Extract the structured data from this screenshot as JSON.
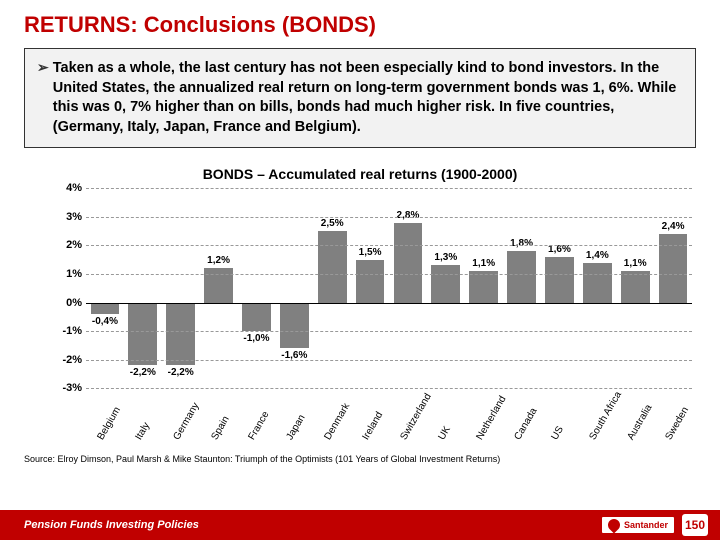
{
  "title": "RETURNS: Conclusions (BONDS)",
  "callout_bullet": "➢",
  "callout_text": "Taken as a whole, the last century has not been especially kind to bond investors. In the United States, the annualized real return on long-term government bonds was 1, 6%.  While this was 0, 7% higher than on bills, bonds had much higher risk. In five countries, (Germany, Italy, Japan, France and Belgium).",
  "chart": {
    "title": "BONDS – Accumulated real returns (1900-2000)",
    "y_min": -3,
    "y_max": 4,
    "y_ticks": [
      4,
      3,
      2,
      1,
      0,
      -1,
      -2,
      -3
    ],
    "y_tick_labels": [
      "4%",
      "3%",
      "2%",
      "1%",
      "0%",
      "-1%",
      "-2%",
      "-3%"
    ],
    "grid_color": "#999999",
    "bar_color": "#808080",
    "background_color": "#ffffff",
    "title_fontsize": 14,
    "label_fontsize": 11,
    "value_label_fontsize": 10,
    "x_label_fontsize": 10,
    "bars": [
      {
        "country": "Belgium",
        "value": -0.4,
        "label": "-0,4%"
      },
      {
        "country": "Italy",
        "value": -2.2,
        "label": "-2,2%"
      },
      {
        "country": "Germany",
        "value": -2.2,
        "label": "-2,2%"
      },
      {
        "country": "Spain",
        "value": 1.2,
        "label": "1,2%"
      },
      {
        "country": "France",
        "value": -1.0,
        "label": "-1,0%"
      },
      {
        "country": "Japan",
        "value": -1.6,
        "label": "-1,6%"
      },
      {
        "country": "Denmark",
        "value": 2.5,
        "label": "2,5%"
      },
      {
        "country": "Ireland",
        "value": 1.5,
        "label": "1,5%"
      },
      {
        "country": "Switzerland",
        "value": 2.8,
        "label": "2,8%"
      },
      {
        "country": "UK",
        "value": 1.3,
        "label": "1,3%"
      },
      {
        "country": "Netherland",
        "value": 1.1,
        "label": "1,1%"
      },
      {
        "country": "Canada",
        "value": 1.8,
        "label": "1,8%"
      },
      {
        "country": "US",
        "value": 1.6,
        "label": "1,6%"
      },
      {
        "country": "South Africa",
        "value": 1.4,
        "label": "1,4%"
      },
      {
        "country": "Australia",
        "value": 1.1,
        "label": "1,1%"
      },
      {
        "country": "Sweden",
        "value": 2.4,
        "label": "2,4%"
      }
    ]
  },
  "source": "Source: Elroy Dimson, Paul Marsh & Mike Staunton: Triumph of the Optimists (101 Years of Global Investment Returns)",
  "footer": "Pension Funds Investing Policies",
  "brand": "Santander",
  "badge": "150",
  "colors": {
    "accent": "#c00000",
    "text": "#000000",
    "callout_bg": "#f2f2f2",
    "footer_bg": "#c00000"
  }
}
